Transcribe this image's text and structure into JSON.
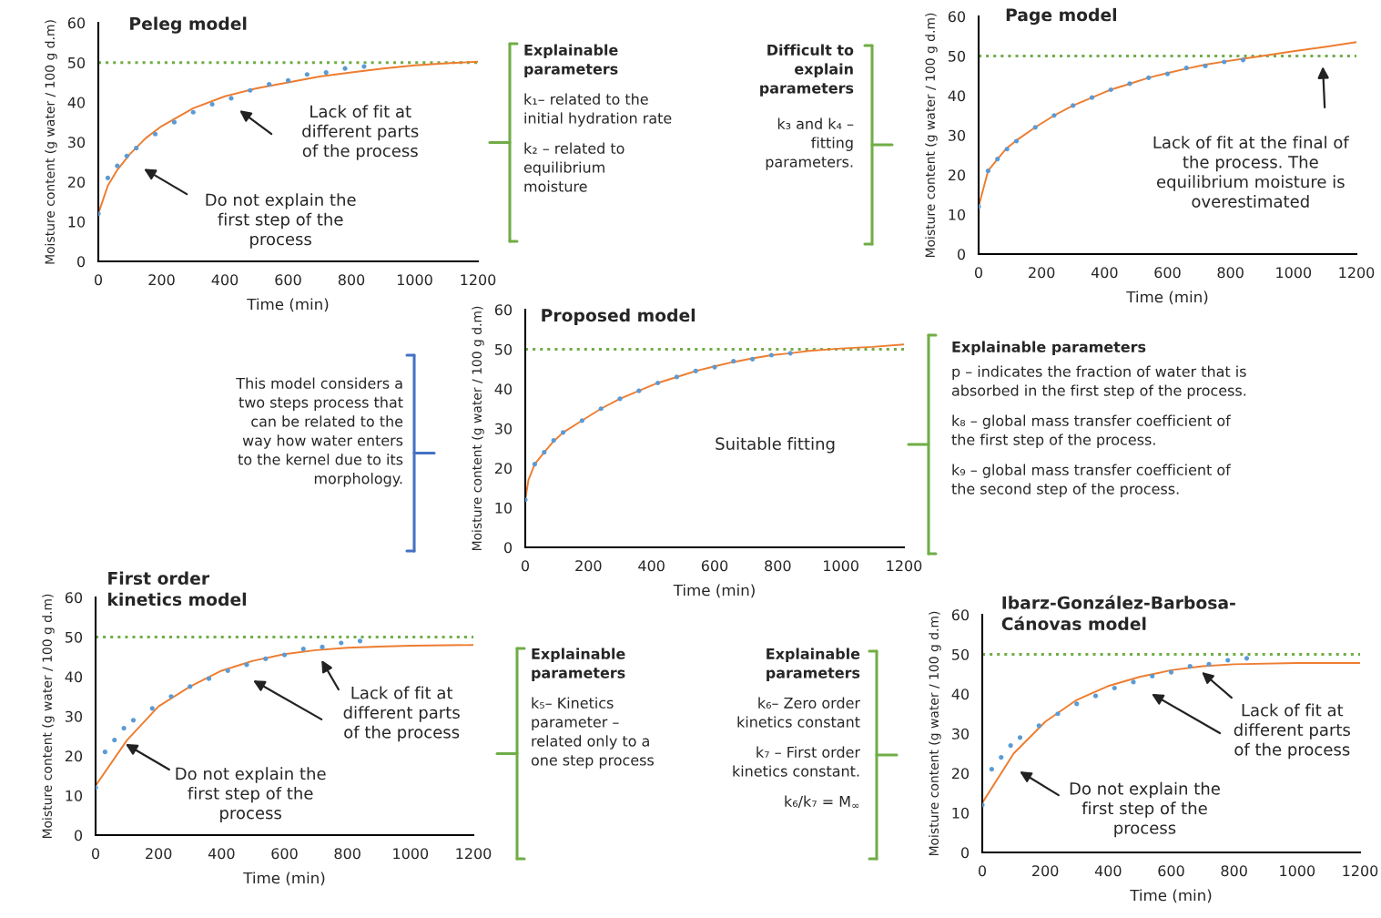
{
  "chart_data": [
    {
      "type": "scatter",
      "title": "Peleg model",
      "xlabel": "Time (min)",
      "ylabel": "Moisture content (g water / 100 g d.m)",
      "x": [
        0,
        30,
        60,
        90,
        120,
        180,
        240,
        300,
        360,
        420,
        480,
        540,
        600,
        660,
        720,
        780,
        840
      ],
      "xlim": [
        0,
        1200
      ],
      "xticks": [
        0,
        200,
        400,
        600,
        800,
        1000,
        1200
      ],
      "ylim": [
        0,
        60
      ],
      "yticks": [
        0,
        10,
        20,
        30,
        40,
        50,
        60
      ],
      "series": [
        {
          "color": "#5b9bd5",
          "marker": "circle",
          "values": [
            12,
            21,
            24,
            26.5,
            28.5,
            32,
            35,
            37.5,
            39.5,
            41,
            43,
            44.5,
            45.5,
            47,
            47.5,
            48.5,
            49
          ]
        },
        {
          "type": "line",
          "color": "#ed7d31",
          "x": [
            0,
            30,
            60,
            100,
            150,
            200,
            300,
            400,
            500,
            600,
            700,
            800,
            900,
            1000,
            1100,
            1200
          ],
          "values": [
            12,
            19,
            23,
            27,
            31,
            34,
            38.5,
            41.5,
            43.5,
            45,
            46.5,
            47.5,
            48.5,
            49.3,
            49.8,
            50.2
          ]
        }
      ],
      "ref_lines": [
        {
          "axis": "y",
          "value": 50,
          "color": "#70ad47",
          "line_style": "dotted"
        }
      ],
      "annotations": [
        "Lack of fit at\ndifferent parts\nof the process",
        "Do not explain the\nfirst step of the\nprocess"
      ]
    },
    {
      "type": "other",
      "title": "Explainable\nparameters",
      "annotations": [
        "k₁– related to the\ninitial hydration rate",
        "k₂ – related to\nequilibrium\nmoisture"
      ]
    },
    {
      "type": "other",
      "title": "Difficult to\nexplain\nparameters",
      "annotations": [
        "k₃ and k₄ –\nfitting\nparameters."
      ]
    },
    {
      "type": "scatter",
      "title": "Page model",
      "xlabel": "Time (min)",
      "ylabel": "Moisture content (g water / 100 g d.m)",
      "x": [
        0,
        30,
        60,
        90,
        120,
        180,
        240,
        300,
        360,
        420,
        480,
        540,
        600,
        660,
        720,
        780,
        840
      ],
      "xlim": [
        0,
        1200
      ],
      "xticks": [
        0,
        200,
        400,
        600,
        800,
        1000,
        1200
      ],
      "ylim": [
        0,
        60
      ],
      "yticks": [
        0,
        10,
        20,
        30,
        40,
        50,
        60
      ],
      "series": [
        {
          "color": "#5b9bd5",
          "marker": "circle",
          "values": [
            12,
            21,
            24,
            26.5,
            28.5,
            32,
            35,
            37.5,
            39.5,
            41.5,
            43,
            44.5,
            45.5,
            47,
            47.5,
            48.5,
            49
          ]
        },
        {
          "type": "line",
          "color": "#ed7d31",
          "x": [
            0,
            30,
            60,
            90,
            120,
            180,
            240,
            300,
            360,
            420,
            480,
            540,
            600,
            660,
            720,
            780,
            840,
            900,
            1000,
            1100,
            1200
          ],
          "values": [
            12,
            21,
            24,
            26.8,
            28.7,
            32,
            35,
            37.5,
            39.5,
            41.5,
            43,
            44.5,
            45.7,
            46.8,
            47.8,
            48.6,
            49.3,
            50,
            51.2,
            52.3,
            53.5
          ]
        }
      ],
      "ref_lines": [
        {
          "axis": "y",
          "value": 50,
          "color": "#70ad47",
          "line_style": "dotted"
        }
      ],
      "annotations": [
        "Lack of fit at the final of\nthe process. The\nequilibrium moisture is\noverestimated"
      ]
    },
    {
      "type": "other",
      "annotations": [
        "This model considers a\ntwo steps process that\ncan be related to the\nway how water enters\nto the kernel due to its\nmorphology."
      ]
    },
    {
      "type": "scatter",
      "title": "Proposed model",
      "xlabel": "Time (min)",
      "ylabel": "Moisture content (g water / 100 g d.m)",
      "x": [
        0,
        30,
        60,
        90,
        120,
        180,
        240,
        300,
        360,
        420,
        480,
        540,
        600,
        660,
        720,
        780,
        840
      ],
      "xlim": [
        0,
        1200
      ],
      "xticks": [
        0,
        200,
        400,
        600,
        800,
        1000,
        1200
      ],
      "ylim": [
        0,
        60
      ],
      "yticks": [
        0,
        10,
        20,
        30,
        40,
        50,
        60
      ],
      "series": [
        {
          "color": "#5b9bd5",
          "marker": "circle",
          "values": [
            12,
            21,
            24,
            27,
            29,
            32,
            35,
            37.5,
            39.5,
            41.5,
            43,
            44.5,
            45.5,
            47,
            47.5,
            48.5,
            49
          ]
        },
        {
          "type": "line",
          "color": "#ed7d31",
          "x": [
            0,
            10,
            30,
            60,
            90,
            120,
            180,
            240,
            300,
            360,
            420,
            480,
            540,
            600,
            660,
            720,
            780,
            840,
            900,
            1000,
            1100,
            1200
          ],
          "values": [
            12,
            17,
            21,
            24,
            26.8,
            29,
            32,
            35,
            37.5,
            39.5,
            41.5,
            43,
            44.5,
            45.7,
            46.8,
            47.7,
            48.5,
            49,
            49.6,
            50.2,
            50.6,
            51.2
          ]
        }
      ],
      "ref_lines": [
        {
          "axis": "y",
          "value": 50,
          "color": "#70ad47",
          "line_style": "dotted"
        }
      ],
      "annotations": [
        "Suitable fitting"
      ]
    },
    {
      "type": "other",
      "title": "Explainable parameters",
      "annotations": [
        "p – indicates the fraction of water that is\nabsorbed in the first step of the process.",
        "k₈ – global mass transfer coefficient of\nthe first step of the process.",
        "k₉ – global mass transfer coefficient of\nthe second step of the process."
      ]
    },
    {
      "type": "scatter",
      "title": "First order\nkinetics model",
      "xlabel": "Time (min)",
      "ylabel": "Moisture content (g water / 100 g d.m)",
      "x": [
        0,
        30,
        60,
        90,
        120,
        180,
        240,
        300,
        360,
        420,
        480,
        540,
        600,
        660,
        720,
        780,
        840
      ],
      "xlim": [
        0,
        1200
      ],
      "xticks": [
        0,
        200,
        400,
        600,
        800,
        1000,
        1200
      ],
      "ylim": [
        0,
        60
      ],
      "yticks": [
        0,
        10,
        20,
        30,
        40,
        50,
        60
      ],
      "series": [
        {
          "color": "#5b9bd5",
          "marker": "circle",
          "values": [
            12,
            21,
            24,
            27,
            29,
            32,
            35,
            37.5,
            39.5,
            41.5,
            43,
            44.5,
            45.5,
            47,
            47.5,
            48.5,
            49
          ]
        },
        {
          "type": "line",
          "color": "#ed7d31",
          "x": [
            0,
            100,
            200,
            300,
            400,
            500,
            600,
            700,
            800,
            900,
            1000,
            1200
          ],
          "values": [
            12.5,
            24,
            32.5,
            37.5,
            41.5,
            44,
            45.7,
            46.7,
            47.3,
            47.6,
            47.8,
            48
          ]
        }
      ],
      "ref_lines": [
        {
          "axis": "y",
          "value": 50,
          "color": "#70ad47",
          "line_style": "dotted"
        }
      ],
      "annotations": [
        "Lack of fit at\ndifferent parts\nof the process",
        {
          "text": "Do not explain the\nfirst step of the\nprocess",
          "x": 95,
          "y": 23
        }
      ]
    },
    {
      "type": "other",
      "title": "Explainable\nparameters",
      "annotations": [
        "k₅– Kinetics\nparameter –\nrelated only to a\none step process"
      ]
    },
    {
      "type": "other",
      "title": "Explainable\nparameters",
      "annotations": [
        "k₆– Zero order\nkinetics constant",
        "k₇ – First order\nkinetics constant.",
        "k₆/k₇ = M$_{∞}$"
      ]
    },
    {
      "type": "scatter",
      "title": "Ibarz-González-Barbosa-\nCánovas model",
      "xlabel": "Time (min)",
      "ylabel": "Moisture content (g water / 100 g d.m)",
      "x": [
        0,
        30,
        60,
        90,
        120,
        180,
        240,
        300,
        360,
        420,
        480,
        540,
        600,
        660,
        720,
        780,
        840
      ],
      "xlim": [
        0,
        1200
      ],
      "xticks": [
        0,
        200,
        400,
        600,
        800,
        1000,
        1200
      ],
      "ylim": [
        0,
        60
      ],
      "yticks": [
        0,
        10,
        20,
        30,
        40,
        50,
        60
      ],
      "series": [
        {
          "color": "#5b9bd5",
          "marker": "circle",
          "values": [
            12,
            21,
            24,
            27,
            29,
            32,
            35,
            37.5,
            39.5,
            41.5,
            43,
            44.5,
            45.5,
            47,
            47.5,
            48.5,
            49
          ]
        },
        {
          "type": "line",
          "color": "#ed7d31",
          "x": [
            0,
            100,
            200,
            300,
            400,
            500,
            600,
            700,
            800,
            1000,
            1200
          ],
          "values": [
            12.5,
            25,
            33,
            38.5,
            42,
            44.3,
            46,
            47,
            47.5,
            47.8,
            47.8
          ]
        }
      ],
      "ref_lines": [
        {
          "axis": "y",
          "value": 50,
          "color": "#70ad47",
          "line_style": "dotted"
        }
      ],
      "annotations": [
        "Lack of fit at\ndifferent parts\nof the process",
        "Do not explain the\nfirst step of the\nprocess"
      ]
    }
  ]
}
